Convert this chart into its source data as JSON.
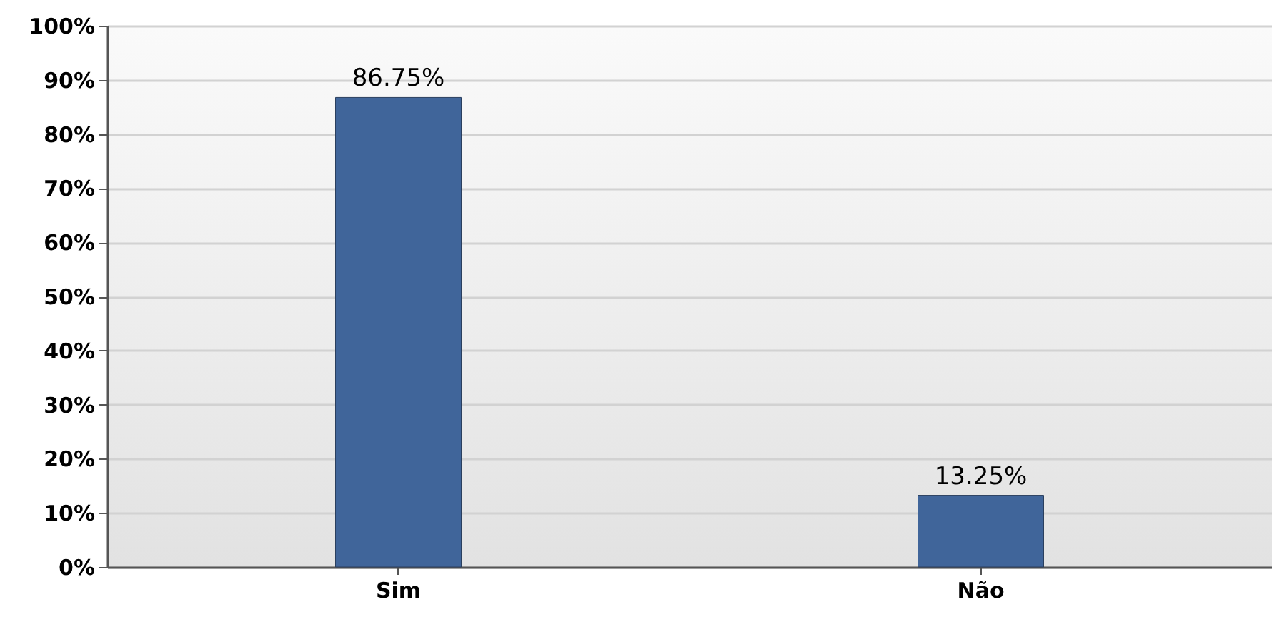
{
  "chart_data": {
    "type": "bar",
    "categories": [
      "Sim",
      "Não"
    ],
    "values": [
      86.75,
      13.25
    ],
    "color": "#40659a",
    "ylim": [
      0,
      100
    ],
    "yticks": [
      {
        "value": 0,
        "label": "0%"
      },
      {
        "value": 10,
        "label": "10%"
      },
      {
        "value": 20,
        "label": "20%"
      },
      {
        "value": 30,
        "label": "30%"
      },
      {
        "value": 40,
        "label": "40%"
      },
      {
        "value": 50,
        "label": "50%"
      },
      {
        "value": 60,
        "label": "60%"
      },
      {
        "value": 70,
        "label": "70%"
      },
      {
        "value": 80,
        "label": "80%"
      },
      {
        "value": 90,
        "label": "90%"
      },
      {
        "value": 100,
        "label": "100%"
      }
    ],
    "grid": "y",
    "value_labels": [
      "86.75%",
      "13.25%"
    ]
  }
}
